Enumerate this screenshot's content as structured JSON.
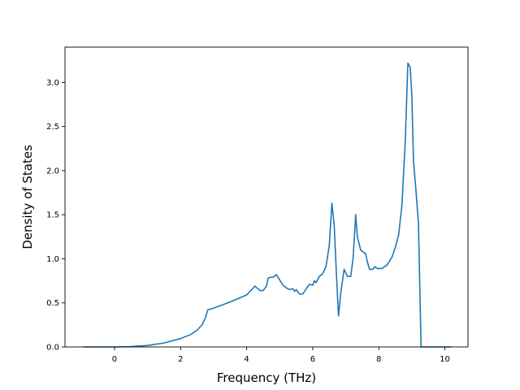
{
  "chart_data": {
    "type": "line",
    "title": "",
    "xlabel": "Frequency (THz)",
    "ylabel": "Density of States",
    "xlim": [
      -1.5,
      10.7
    ],
    "ylim": [
      0.0,
      3.4
    ],
    "xticks": [
      0,
      2,
      4,
      6,
      8,
      10
    ],
    "xtick_labels": [
      "0",
      "2",
      "4",
      "6",
      "8",
      "10"
    ],
    "yticks": [
      0.0,
      0.5,
      1.0,
      1.5,
      2.0,
      2.5,
      3.0
    ],
    "ytick_labels": [
      "0.0",
      "0.5",
      "1.0",
      "1.5",
      "2.0",
      "2.5",
      "3.0"
    ],
    "grid": false,
    "legend": "none",
    "series": [
      {
        "color": "#1f77b4",
        "points": [
          [
            -0.95,
            0.0
          ],
          [
            0.0,
            0.0
          ],
          [
            0.5,
            0.004
          ],
          [
            1.0,
            0.017
          ],
          [
            1.5,
            0.045
          ],
          [
            2.0,
            0.095
          ],
          [
            2.3,
            0.14
          ],
          [
            2.5,
            0.19
          ],
          [
            2.65,
            0.25
          ],
          [
            2.75,
            0.33
          ],
          [
            2.82,
            0.42
          ],
          [
            3.0,
            0.44
          ],
          [
            3.5,
            0.51
          ],
          [
            4.0,
            0.59
          ],
          [
            4.25,
            0.69
          ],
          [
            4.4,
            0.64
          ],
          [
            4.5,
            0.64
          ],
          [
            4.6,
            0.69
          ],
          [
            4.65,
            0.78
          ],
          [
            4.72,
            0.79
          ],
          [
            4.8,
            0.79
          ],
          [
            4.9,
            0.82
          ],
          [
            5.0,
            0.76
          ],
          [
            5.1,
            0.7
          ],
          [
            5.2,
            0.67
          ],
          [
            5.3,
            0.65
          ],
          [
            5.4,
            0.66
          ],
          [
            5.45,
            0.63
          ],
          [
            5.5,
            0.65
          ],
          [
            5.6,
            0.6
          ],
          [
            5.7,
            0.6
          ],
          [
            5.8,
            0.66
          ],
          [
            5.9,
            0.71
          ],
          [
            6.0,
            0.7
          ],
          [
            6.05,
            0.75
          ],
          [
            6.1,
            0.73
          ],
          [
            6.2,
            0.8
          ],
          [
            6.3,
            0.83
          ],
          [
            6.4,
            0.91
          ],
          [
            6.5,
            1.15
          ],
          [
            6.58,
            1.63
          ],
          [
            6.65,
            1.38
          ],
          [
            6.72,
            0.8
          ],
          [
            6.78,
            0.35
          ],
          [
            6.85,
            0.62
          ],
          [
            6.95,
            0.88
          ],
          [
            7.05,
            0.8
          ],
          [
            7.15,
            0.8
          ],
          [
            7.22,
            1.0
          ],
          [
            7.3,
            1.5
          ],
          [
            7.35,
            1.25
          ],
          [
            7.45,
            1.1
          ],
          [
            7.55,
            1.07
          ],
          [
            7.6,
            1.06
          ],
          [
            7.65,
            0.97
          ],
          [
            7.72,
            0.88
          ],
          [
            7.82,
            0.88
          ],
          [
            7.88,
            0.91
          ],
          [
            7.95,
            0.89
          ],
          [
            8.1,
            0.89
          ],
          [
            8.25,
            0.93
          ],
          [
            8.4,
            1.02
          ],
          [
            8.5,
            1.13
          ],
          [
            8.6,
            1.27
          ],
          [
            8.7,
            1.61
          ],
          [
            8.8,
            2.32
          ],
          [
            8.88,
            3.22
          ],
          [
            8.95,
            3.17
          ],
          [
            9.0,
            2.85
          ],
          [
            9.05,
            2.1
          ],
          [
            9.12,
            1.8
          ],
          [
            9.2,
            1.4
          ],
          [
            9.28,
            0.0
          ],
          [
            10.2,
            0.0
          ]
        ]
      }
    ]
  }
}
